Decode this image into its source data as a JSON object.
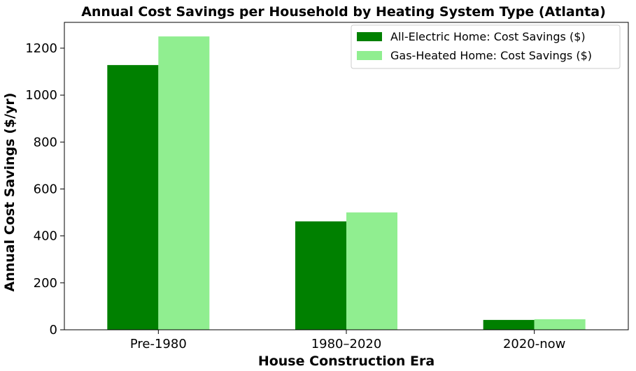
{
  "chart_data": {
    "type": "bar",
    "title": "Annual Cost Savings per Household by Heating System Type (Atlanta)",
    "xlabel": "House Construction Era",
    "ylabel": "Annual Cost Savings ($/yr)",
    "categories": [
      "Pre-1980",
      "1980–2020",
      "2020-now"
    ],
    "series": [
      {
        "name": "All-Electric Home: Cost Savings ($)",
        "color": "#008000",
        "values": [
          1128,
          462,
          42
        ]
      },
      {
        "name": "Gas-Heated Home: Cost Savings ($)",
        "color": "#90ee90",
        "values": [
          1250,
          500,
          45
        ]
      }
    ],
    "ylim": [
      0,
      1310
    ],
    "yticks": [
      0,
      200,
      400,
      600,
      800,
      1000,
      1200
    ],
    "ytick_labels": [
      "0",
      "200",
      "400",
      "600",
      "800",
      "1000",
      "1200"
    ],
    "grid": false,
    "legend_position": "upper right"
  }
}
